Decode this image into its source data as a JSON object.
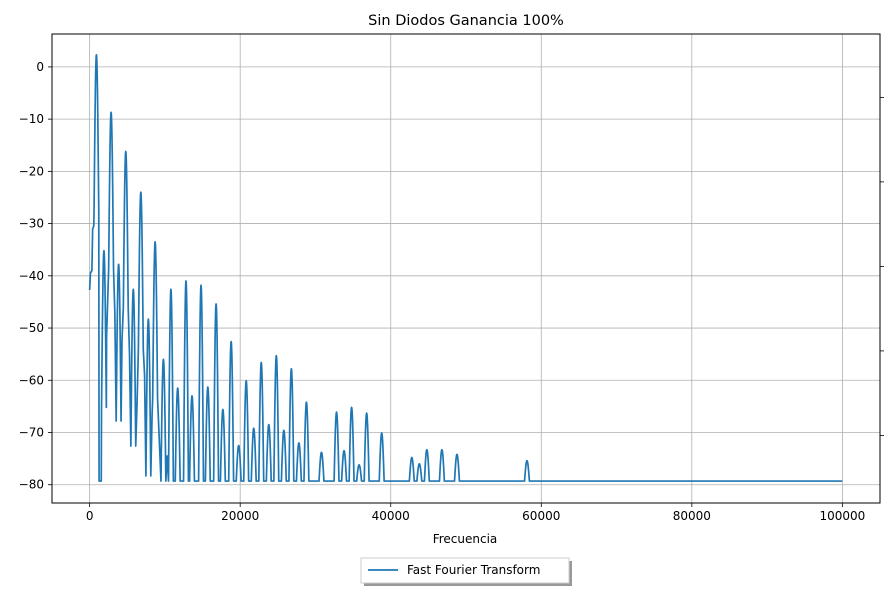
{
  "chart_data": {
    "type": "line",
    "title": "Sin Diodos Ganancia 100%",
    "xlabel": "Frecuencia",
    "ylabel": "",
    "xlim": [
      -5000,
      105000
    ],
    "ylim": [
      -83.5,
      6.3
    ],
    "xticks": [
      0,
      20000,
      40000,
      60000,
      80000,
      100000
    ],
    "xtick_labels": [
      "0",
      "20000",
      "40000",
      "60000",
      "80000",
      "100000"
    ],
    "yticks": [
      0,
      -10,
      -20,
      -30,
      -40,
      -50,
      -60,
      -70,
      -80
    ],
    "ytick_labels": [
      "0",
      "−10",
      "−20",
      "−30",
      "−40",
      "−50",
      "−60",
      "−70",
      "−80"
    ],
    "grid": true,
    "legend_position": "below-center",
    "line_color": "#1f77b4",
    "series": [
      {
        "name": "Fast Fourier Transform",
        "floor": -79.3,
        "start": [
          [
            0,
            -42.7
          ],
          [
            100,
            -39.5
          ],
          [
            300,
            -39
          ],
          [
            400,
            -31
          ],
          [
            550,
            -30.5
          ]
        ],
        "peaks": [
          [
            900,
            2.3
          ],
          [
            1900,
            -35.2
          ],
          [
            2850,
            -8.7
          ],
          [
            3850,
            -37.8
          ],
          [
            4800,
            -16.2
          ],
          [
            5800,
            -42.6
          ],
          [
            6800,
            -24.0
          ],
          [
            7800,
            -48.3
          ],
          [
            8700,
            -33.5
          ],
          [
            9800,
            -56.0
          ],
          [
            10800,
            -42.6
          ],
          [
            11700,
            -61.5
          ],
          [
            12800,
            -41.0
          ],
          [
            13600,
            -63.0
          ],
          [
            14800,
            -41.8
          ],
          [
            15700,
            -61.3
          ],
          [
            16800,
            -45.4
          ],
          [
            17700,
            -65.6
          ],
          [
            18800,
            -52.6
          ],
          [
            19800,
            -72.5
          ],
          [
            20800,
            -60.1
          ],
          [
            21800,
            -69.2
          ],
          [
            22800,
            -56.6
          ],
          [
            23800,
            -68.5
          ],
          [
            24800,
            -55.3
          ],
          [
            25800,
            -69.6
          ],
          [
            26800,
            -57.8
          ],
          [
            27800,
            -72.0
          ],
          [
            28800,
            -64.2
          ],
          [
            30800,
            -73.8
          ],
          [
            32800,
            -66.1
          ],
          [
            33800,
            -73.5
          ],
          [
            34800,
            -65.2
          ],
          [
            35800,
            -76.2
          ],
          [
            36800,
            -66.3
          ],
          [
            38800,
            -70.1
          ],
          [
            42800,
            -74.8
          ],
          [
            43800,
            -76.0
          ],
          [
            44800,
            -73.3
          ],
          [
            46800,
            -73.3
          ],
          [
            48800,
            -74.2
          ],
          [
            58100,
            -75.4
          ]
        ],
        "dips": [
          [
            2250,
            -51.7
          ],
          [
            3350,
            -47.2
          ],
          [
            4300,
            -52.3
          ],
          [
            5300,
            -55.2
          ],
          [
            6300,
            -64.3
          ],
          [
            7300,
            -59.0
          ],
          [
            8300,
            -66.5
          ],
          [
            9300,
            -73.0
          ],
          [
            10300,
            -74.5
          ],
          [
            11200,
            -79.3
          ]
        ],
        "end": [
          100000,
          -79.3
        ]
      }
    ]
  }
}
